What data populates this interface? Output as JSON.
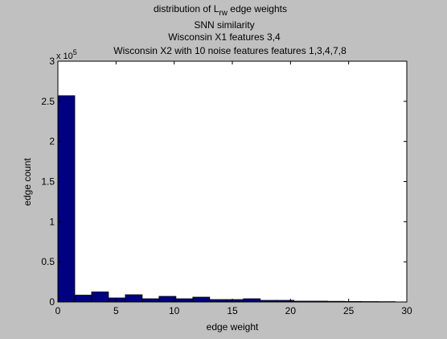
{
  "chart_data": {
    "type": "bar",
    "title_line1_prefix": "distribution of L",
    "title_line1_sub": "rw",
    "title_line1_suffix": " edge weights",
    "title_line2": "SNN similarity",
    "title_line3": "Wisconsin X1 features 3,4",
    "title_line4": "Wisconsin X2 with 10 noise features features 1,3,4,7,8",
    "xlabel": "edge weight",
    "ylabel": "edge count",
    "y_exponent_base": "x 10",
    "y_exponent_power": "5",
    "xlim": [
      0,
      30
    ],
    "ylim": [
      0,
      3
    ],
    "x_ticks": [
      0,
      5,
      10,
      15,
      20,
      25,
      30
    ],
    "y_ticks": [
      0,
      0.5,
      1,
      1.5,
      2,
      2.5,
      3
    ],
    "bin_width": 1.45,
    "bin_starts": [
      0,
      1.45,
      2.9,
      4.35,
      5.8,
      7.25,
      8.7,
      10.15,
      11.6,
      13.05,
      14.5,
      15.95,
      17.4,
      18.85,
      20.3,
      21.75,
      23.2,
      24.65,
      26.1,
      27.55
    ],
    "values": [
      2.57,
      0.085,
      0.125,
      0.05,
      0.09,
      0.04,
      0.07,
      0.04,
      0.06,
      0.03,
      0.03,
      0.04,
      0.02,
      0.02,
      0.01,
      0.01,
      0.008,
      0.006,
      0.005,
      0.004
    ],
    "colors": {
      "bar_fill": "#000080",
      "bar_edge": "#000000",
      "axes_bg": "#ffffff",
      "figure_bg": "#c0c0c0"
    },
    "grid": false
  }
}
